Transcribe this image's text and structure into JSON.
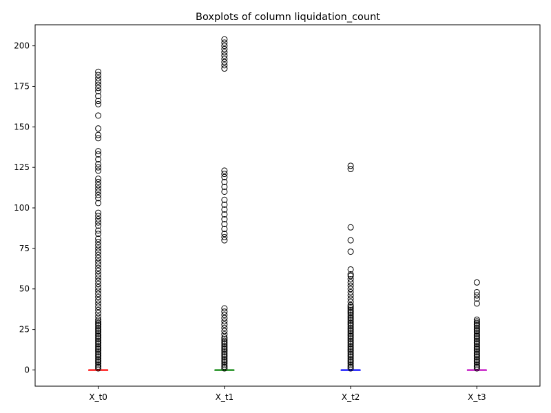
{
  "chart_data": {
    "type": "boxplot",
    "title": "Boxplots of column liquidation_count",
    "xlabel": "",
    "ylabel": "",
    "ylim": [
      -10,
      213
    ],
    "grid": false,
    "y_ticks": [
      0,
      25,
      50,
      75,
      100,
      125,
      150,
      175,
      200
    ],
    "categories": [
      "X_t0",
      "X_t1",
      "X_t2",
      "X_t3"
    ],
    "series": [
      {
        "category": "X_t0",
        "color": "#ff0000",
        "median": 0,
        "q1": 0,
        "q3": 0,
        "whisker_low": 0,
        "whisker_high": 0,
        "outliers": [
          1,
          2,
          3,
          4,
          5,
          6,
          7,
          8,
          9,
          10,
          11,
          12,
          13,
          14,
          15,
          16,
          17,
          18,
          19,
          20,
          21,
          22,
          23,
          24,
          25,
          26,
          27,
          28,
          29,
          30,
          31,
          33,
          35,
          37,
          39,
          41,
          43,
          45,
          47,
          49,
          51,
          53,
          55,
          57,
          59,
          61,
          63,
          65,
          67,
          69,
          71,
          73,
          75,
          77,
          79,
          81,
          84,
          86,
          89,
          91,
          93,
          95,
          97,
          103,
          106,
          108,
          110,
          112,
          114,
          116,
          118,
          123,
          125,
          127,
          130,
          133,
          135,
          143,
          145,
          149,
          157,
          164,
          166,
          169,
          172,
          174,
          176,
          178,
          180,
          182,
          184
        ]
      },
      {
        "category": "X_t1",
        "color": "#008000",
        "median": 0,
        "q1": 0,
        "q3": 0,
        "whisker_low": 0,
        "whisker_high": 0,
        "outliers": [
          1,
          2,
          3,
          4,
          5,
          6,
          7,
          8,
          9,
          10,
          11,
          12,
          13,
          14,
          15,
          16,
          17,
          18,
          19,
          20,
          22,
          24,
          26,
          28,
          30,
          32,
          34,
          36,
          38,
          80,
          82,
          84,
          87,
          90,
          93,
          96,
          99,
          102,
          105,
          110,
          113,
          116,
          119,
          121,
          123,
          186,
          188,
          190,
          192,
          194,
          196,
          198,
          200,
          202,
          204
        ]
      },
      {
        "category": "X_t2",
        "color": "#0000ff",
        "median": 0,
        "q1": 0,
        "q3": 0,
        "whisker_low": 0,
        "whisker_high": 0,
        "outliers": [
          1,
          2,
          3,
          4,
          5,
          6,
          7,
          8,
          9,
          10,
          11,
          12,
          13,
          14,
          15,
          16,
          17,
          18,
          19,
          20,
          21,
          22,
          23,
          24,
          25,
          26,
          27,
          28,
          29,
          30,
          31,
          32,
          33,
          34,
          35,
          36,
          37,
          38,
          39,
          40,
          42,
          44,
          46,
          48,
          50,
          52,
          54,
          56,
          58,
          59,
          62,
          73,
          80,
          88,
          124,
          126
        ]
      },
      {
        "category": "X_t3",
        "color": "#bf00bf",
        "median": 0,
        "q1": 0,
        "q3": 0,
        "whisker_low": 0,
        "whisker_high": 0,
        "outliers": [
          1,
          2,
          3,
          4,
          5,
          6,
          7,
          8,
          9,
          10,
          11,
          12,
          13,
          14,
          15,
          16,
          17,
          18,
          19,
          20,
          21,
          22,
          23,
          24,
          25,
          26,
          27,
          28,
          29,
          30,
          31,
          41,
          44,
          46,
          48,
          54
        ]
      }
    ]
  }
}
